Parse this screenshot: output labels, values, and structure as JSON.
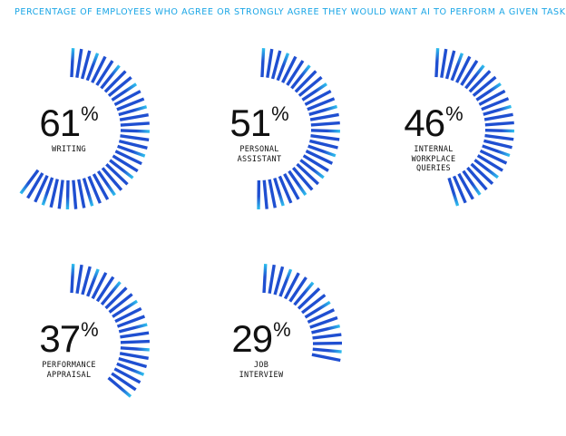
{
  "title": "PERCENTAGE OF EMPLOYEES WHO AGREE OR STRONGLY AGREE THEY WOULD WANT AI TO PERFORM A GIVEN TASK",
  "chart_data": {
    "type": "radial-bar",
    "unit": "%",
    "items": [
      {
        "value": 61,
        "value_text": "61",
        "label_lines": [
          "WRITING"
        ]
      },
      {
        "value": 51,
        "value_text": "51",
        "label_lines": [
          "PERSONAL",
          "ASSISTANT"
        ]
      },
      {
        "value": 46,
        "value_text": "46",
        "label_lines": [
          "INTERNAL",
          "WORKPLACE",
          "QUERIES"
        ]
      },
      {
        "value": 37,
        "value_text": "37",
        "label_lines": [
          "PERFORMANCE",
          "APPRAISAL"
        ]
      },
      {
        "value": 29,
        "value_text": "29",
        "label_lines": [
          "JOB",
          "INTERVIEW"
        ]
      }
    ],
    "colors": {
      "dark": "#1f4fd1",
      "light": "#2ec0ee",
      "title": "#1aa6e6",
      "text": "#111111"
    }
  }
}
